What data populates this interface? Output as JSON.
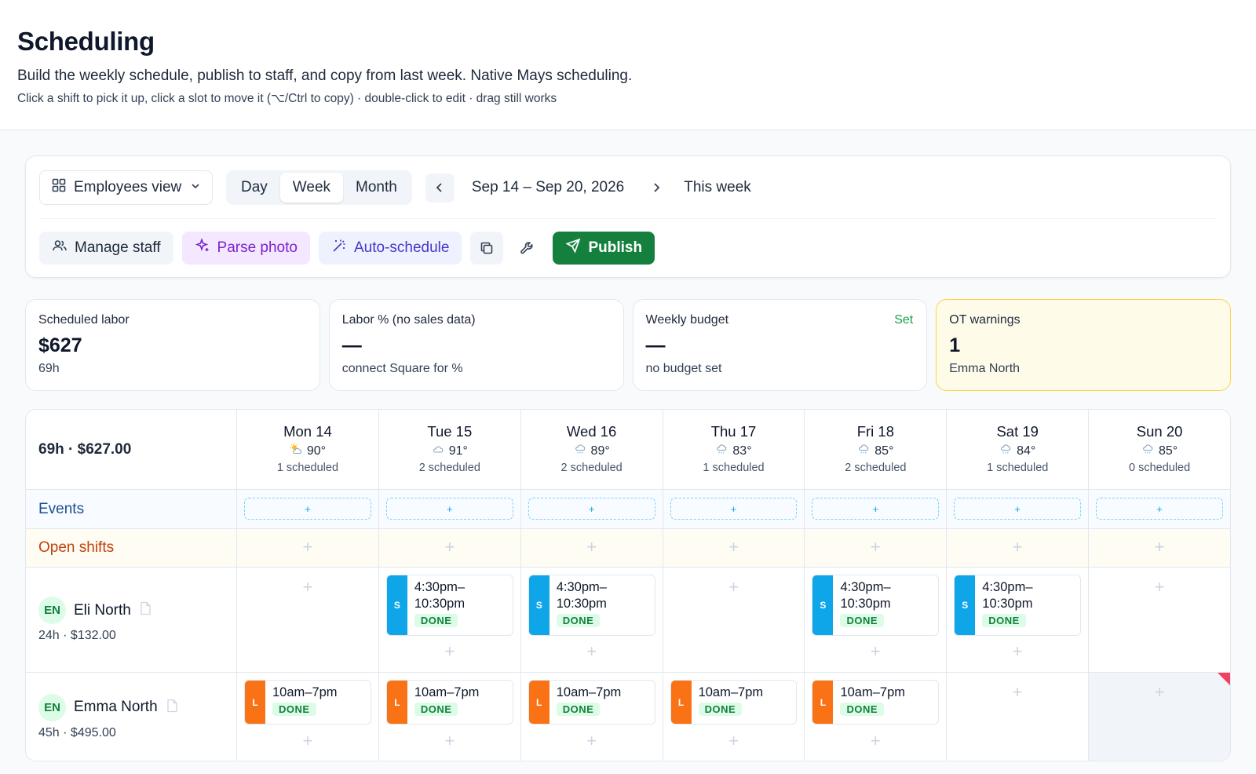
{
  "header": {
    "title": "Scheduling",
    "subtitle": "Build the weekly schedule, publish to staff, and copy from last week. Native Mays scheduling.",
    "hint": "Click a shift to pick it up, click a slot to move it (⌥/Ctrl to copy) · double-click to edit · drag still works"
  },
  "toolbar": {
    "view_label": "Employees view",
    "segments": [
      "Day",
      "Week",
      "Month"
    ],
    "active_segment": "Week",
    "date_range": "Sep 14 – Sep 20, 2026",
    "this_week": "This week",
    "manage_staff": "Manage staff",
    "parse_photo": "Parse photo",
    "auto_schedule": "Auto-schedule",
    "publish": "Publish"
  },
  "cards": [
    {
      "label": "Scheduled labor",
      "value": "$627",
      "note": "69h"
    },
    {
      "label": "Labor % (no sales data)",
      "value": "—",
      "note": "connect Square for %"
    },
    {
      "label": "Weekly budget",
      "value": "—",
      "note": "no budget set",
      "action": "Set"
    },
    {
      "label": "OT warnings",
      "value": "1",
      "note": "Emma North"
    }
  ],
  "grid": {
    "summary": "69h · $627.00",
    "days": [
      {
        "name": "Mon 14",
        "temp": "90°",
        "icon": "sun-cloud-icon",
        "scheduled": "1 scheduled"
      },
      {
        "name": "Tue 15",
        "temp": "91°",
        "icon": "cloud-icon",
        "scheduled": "2 scheduled"
      },
      {
        "name": "Wed 16",
        "temp": "89°",
        "icon": "rain-icon",
        "scheduled": "2 scheduled"
      },
      {
        "name": "Thu 17",
        "temp": "83°",
        "icon": "rain-icon",
        "scheduled": "1 scheduled"
      },
      {
        "name": "Fri 18",
        "temp": "85°",
        "icon": "rain-icon",
        "scheduled": "2 scheduled"
      },
      {
        "name": "Sat 19",
        "temp": "84°",
        "icon": "rain-icon",
        "scheduled": "1 scheduled"
      },
      {
        "name": "Sun 20",
        "temp": "85°",
        "icon": "rain-icon",
        "scheduled": "0 scheduled"
      }
    ],
    "events_label": "Events",
    "open_shifts_label": "Open shifts",
    "plus": "+",
    "employees": [
      {
        "initials": "EN",
        "name": "Eli North",
        "meta": "24h · $132.00",
        "shift_role": "S",
        "shift_time": "4:30pm–10:30pm",
        "status": "DONE"
      },
      {
        "initials": "EN",
        "name": "Emma North",
        "meta": "45h · $495.00",
        "shift_role": "L",
        "shift_time": "10am–7pm",
        "status": "DONE"
      }
    ]
  },
  "colors": {
    "publish": "#15803d",
    "role_s": "#0ea5e9",
    "role_l": "#f97316",
    "ot_warning_bg": "#fefce8",
    "ot_flag": "#f43f5e"
  }
}
